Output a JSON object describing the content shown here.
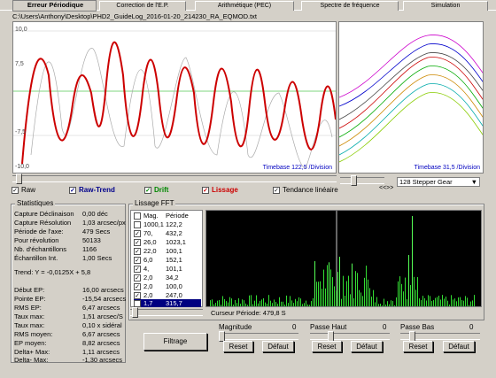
{
  "tabs": [
    {
      "label": "Erreur Périodique"
    },
    {
      "label": "Correction de l'E.P."
    },
    {
      "label": "Arithmétique (PEC)"
    },
    {
      "label": "Spectre de fréquence"
    },
    {
      "label": "Simulation"
    }
  ],
  "file_path": "C:\\Users\\Anthony\\Desktop\\PHD2_GuideLog_2016-01-20_214230_RA_EQMOD.txt",
  "main_plot": {
    "y_ticks": [
      "10,0",
      "7,5",
      "-7,5",
      "-10,0"
    ],
    "timebase": "Timebase 122,5 /Division"
  },
  "right_plot": {
    "timebase": "Timebase 31,5 /Division",
    "dropdown": "128 Stepper Gear",
    "arrows": "<<>>"
  },
  "checkboxes": {
    "raw": {
      "label": "Raw",
      "checked": true
    },
    "raw_trend": {
      "label": "Raw-Trend",
      "checked": true
    },
    "drift": {
      "label": "Drift",
      "checked": true
    },
    "smoothing": {
      "label": "Lissage",
      "checked": true
    },
    "linear_correction": {
      "label": "Tendance linéaire",
      "checked": true
    }
  },
  "stats": {
    "title": "Statistiques",
    "rows": [
      {
        "label": "Capture Déclinaison",
        "value": "0,00 déc"
      },
      {
        "label": "Capture Résolution",
        "value": "1,03 arcsec/px"
      },
      {
        "label": "Période de l'axe:",
        "value": "479 Secs"
      },
      {
        "label": "Pour révolution",
        "value": "50133"
      },
      {
        "label": "Nb. d'échantillons",
        "value": "1166"
      },
      {
        "label": "Échantillon Int.",
        "value": "1,00 Secs"
      },
      {
        "label": "Trend:  Y = -0,0125X + 5,8",
        "value": ""
      },
      {
        "label": "Début EP:",
        "value": "16,00 arcsecs"
      },
      {
        "label": "Pointe EP:",
        "value": "-15,54 arcsecs"
      },
      {
        "label": "RMS EP:",
        "value": "6,47 arcsecs"
      },
      {
        "label": "Taux max:",
        "value": "1,51 arcsec/S"
      },
      {
        "label": "Taux max:",
        "value": "0,10 x sidéral"
      },
      {
        "label": "RMS moyen:",
        "value": "6,67 arcsecs"
      },
      {
        "label": "EP moyen:",
        "value": "8,82 arcsecs"
      },
      {
        "label": "Delta+ Max:",
        "value": "1,11 arcsecs"
      },
      {
        "label": "Delta- Max:",
        "value": "-1,30 arcsecs"
      }
    ]
  },
  "smoothing_fft": {
    "title": "Lissage FFT",
    "header": {
      "mag": "Mag.",
      "period": "Période"
    },
    "items": [
      {
        "checked": false,
        "mag": "1000,1",
        "period": "122,2"
      },
      {
        "checked": true,
        "mag": "70,",
        "period": "432,2"
      },
      {
        "checked": true,
        "mag": "26,0",
        "period": "1023,1"
      },
      {
        "checked": true,
        "mag": "22,0",
        "period": "100,1"
      },
      {
        "checked": true,
        "mag": "6,0",
        "period": "152,1"
      },
      {
        "checked": true,
        "mag": "4,",
        "period": "101,1"
      },
      {
        "checked": true,
        "mag": "2,0",
        "period": "34,2"
      },
      {
        "checked": true,
        "mag": "2,0",
        "period": "100,0"
      },
      {
        "checked": true,
        "mag": "2,0",
        "period": "247,0"
      },
      {
        "checked": true,
        "mag": "1,7",
        "period": "315,7"
      }
    ],
    "cursor_label": "Curseur Période: 479,8 S"
  },
  "filters": [
    {
      "label": "Magnitude",
      "value": "0",
      "reset": "Reset",
      "defaults": "Défaut"
    },
    {
      "label": "Passe Haut",
      "value": "0",
      "reset": "Reset",
      "defaults": "Défaut"
    },
    {
      "label": "Passe Bas",
      "value": "0",
      "reset": "Reset",
      "defaults": "Défaut"
    }
  ],
  "buttons": {
    "apply": "Filtrage"
  },
  "colors": {
    "raw_trend": "#cc0000",
    "trace": "#999999",
    "fft_bar": "#33dd33",
    "fft_peak": "#55ff55"
  }
}
